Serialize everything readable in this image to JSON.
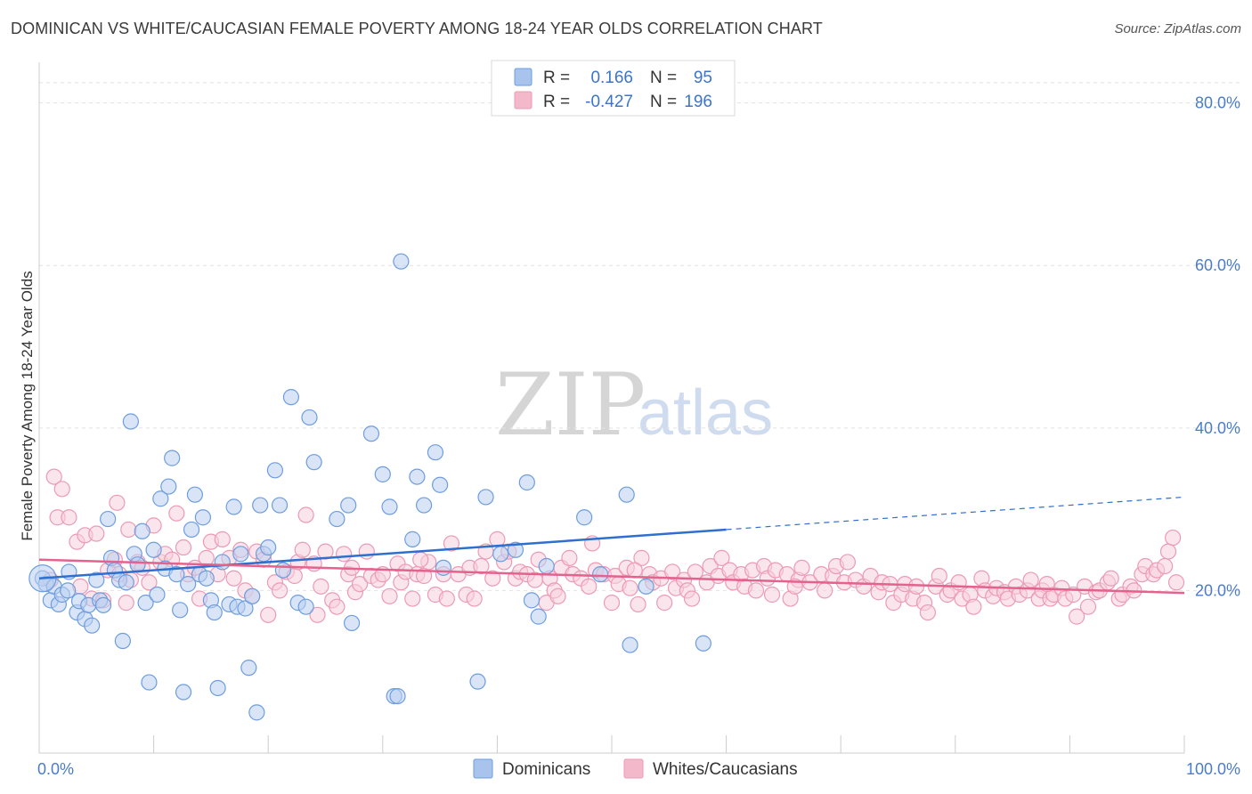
{
  "title": "DOMINICAN VS WHITE/CAUCASIAN FEMALE POVERTY AMONG 18-24 YEAR OLDS CORRELATION CHART",
  "source": "Source: ZipAtlas.com",
  "watermark": {
    "zip": "ZIP",
    "atlas": "atlas"
  },
  "legend": {
    "rows": [
      {
        "r_label": "R =",
        "r_value": "0.166",
        "n_label": "N =",
        "n_value": "95",
        "color": "#a8c4ec"
      },
      {
        "r_label": "R =",
        "r_value": "-0.427",
        "n_label": "N =",
        "n_value": "196",
        "color": "#f4b8cb"
      }
    ]
  },
  "bottom_legend": [
    {
      "label": "Dominicans",
      "color": "#a8c4ec"
    },
    {
      "label": "Whites/Caucasians",
      "color": "#f4b8cb"
    }
  ],
  "chart_data": {
    "type": "scatter",
    "ylabel": "Female Poverty Among 18-24 Year Olds",
    "xlim": [
      0,
      100
    ],
    "ylim": [
      0,
      85
    ],
    "y_ticks": [
      {
        "v": 20,
        "label": "20.0%"
      },
      {
        "v": 40,
        "label": "40.0%"
      },
      {
        "v": 60,
        "label": "60.0%"
      },
      {
        "v": 80,
        "label": "80.0%"
      }
    ],
    "x_tick_labels": [
      {
        "v": 0,
        "label": "0.0%"
      },
      {
        "v": 100,
        "label": "100.0%"
      }
    ],
    "grid": true,
    "legend_position": "top-center",
    "series": [
      {
        "name": "Dominicans",
        "color": "#6d9de0",
        "fill": "#b9d0f1",
        "trend": {
          "x0": 0,
          "y0": 21.5,
          "x1": 60,
          "y1": 27.5,
          "dash_to_x": 100,
          "dash_to_y": 31.5,
          "color": "#2f6fcf"
        },
        "points": [
          [
            0.3,
            21.5
          ],
          [
            0.6,
            20.8
          ],
          [
            1.0,
            18.8
          ],
          [
            1.3,
            20.5
          ],
          [
            1.7,
            18.3
          ],
          [
            2.0,
            19.5
          ],
          [
            2.5,
            20.0
          ],
          [
            2.6,
            22.3
          ],
          [
            3.3,
            17.3
          ],
          [
            3.5,
            18.7
          ],
          [
            4.0,
            16.5
          ],
          [
            4.3,
            18.2
          ],
          [
            4.6,
            15.7
          ],
          [
            5.0,
            21.3
          ],
          [
            5.3,
            18.8
          ],
          [
            5.6,
            18.2
          ],
          [
            6.0,
            28.8
          ],
          [
            6.3,
            24.0
          ],
          [
            6.6,
            22.5
          ],
          [
            7.0,
            21.3
          ],
          [
            7.3,
            13.8
          ],
          [
            7.6,
            21.0
          ],
          [
            8.0,
            40.8
          ],
          [
            8.3,
            24.5
          ],
          [
            8.6,
            23.2
          ],
          [
            9.0,
            27.3
          ],
          [
            9.3,
            18.5
          ],
          [
            9.6,
            8.7
          ],
          [
            10.0,
            25.0
          ],
          [
            10.3,
            19.5
          ],
          [
            10.6,
            31.3
          ],
          [
            11.0,
            22.7
          ],
          [
            11.3,
            32.8
          ],
          [
            11.6,
            36.3
          ],
          [
            12.0,
            22.0
          ],
          [
            12.3,
            17.6
          ],
          [
            12.6,
            7.5
          ],
          [
            13.0,
            20.8
          ],
          [
            13.3,
            27.5
          ],
          [
            13.6,
            31.8
          ],
          [
            14.0,
            22.0
          ],
          [
            14.3,
            29.0
          ],
          [
            14.6,
            21.5
          ],
          [
            15.0,
            18.8
          ],
          [
            15.3,
            17.3
          ],
          [
            15.6,
            8.0
          ],
          [
            16.0,
            23.5
          ],
          [
            16.6,
            18.3
          ],
          [
            17.0,
            30.3
          ],
          [
            17.3,
            18.0
          ],
          [
            17.6,
            24.5
          ],
          [
            18.0,
            17.8
          ],
          [
            18.3,
            10.5
          ],
          [
            18.6,
            19.3
          ],
          [
            19.0,
            5.0
          ],
          [
            19.3,
            30.5
          ],
          [
            19.6,
            24.5
          ],
          [
            20.0,
            25.3
          ],
          [
            20.6,
            34.8
          ],
          [
            21.0,
            30.5
          ],
          [
            21.3,
            22.5
          ],
          [
            22.0,
            43.8
          ],
          [
            22.6,
            18.5
          ],
          [
            23.3,
            18.0
          ],
          [
            23.6,
            41.3
          ],
          [
            24.0,
            35.8
          ],
          [
            26.0,
            28.8
          ],
          [
            27.0,
            30.5
          ],
          [
            27.3,
            16.0
          ],
          [
            29.0,
            39.3
          ],
          [
            30.0,
            34.3
          ],
          [
            30.6,
            30.3
          ],
          [
            31.0,
            7.0
          ],
          [
            31.3,
            7.0
          ],
          [
            31.6,
            60.5
          ],
          [
            32.6,
            26.3
          ],
          [
            33.0,
            34.0
          ],
          [
            33.6,
            30.5
          ],
          [
            34.6,
            37.0
          ],
          [
            35.0,
            33.0
          ],
          [
            35.3,
            22.8
          ],
          [
            38.3,
            8.8
          ],
          [
            39.0,
            31.5
          ],
          [
            40.3,
            24.5
          ],
          [
            41.6,
            25.0
          ],
          [
            42.6,
            33.3
          ],
          [
            43.0,
            18.8
          ],
          [
            43.6,
            16.8
          ],
          [
            44.3,
            23.0
          ],
          [
            47.6,
            29.0
          ],
          [
            49.0,
            22.0
          ],
          [
            51.3,
            31.8
          ],
          [
            51.6,
            13.3
          ],
          [
            58.0,
            13.5
          ],
          [
            53.0,
            20.5
          ]
        ]
      },
      {
        "name": "Whites/Caucasians",
        "color": "#ec9ab5",
        "fill": "#f8cfdd",
        "trend": {
          "x0": 0,
          "y0": 23.8,
          "x1": 100,
          "y1": 19.7,
          "color": "#e4628e"
        },
        "points": [
          [
            1.0,
            21.3
          ],
          [
            1.3,
            34.0
          ],
          [
            1.6,
            29.0
          ],
          [
            2.0,
            32.5
          ],
          [
            2.6,
            29.0
          ],
          [
            3.3,
            26.0
          ],
          [
            3.6,
            20.5
          ],
          [
            4.0,
            26.8
          ],
          [
            4.6,
            19.0
          ],
          [
            5.0,
            27.0
          ],
          [
            5.6,
            18.8
          ],
          [
            6.0,
            22.5
          ],
          [
            6.6,
            23.8
          ],
          [
            6.8,
            30.8
          ],
          [
            7.0,
            22.0
          ],
          [
            7.6,
            18.5
          ],
          [
            7.8,
            27.5
          ],
          [
            8.0,
            21.3
          ],
          [
            8.6,
            23.5
          ],
          [
            9.0,
            22.8
          ],
          [
            9.6,
            21.0
          ],
          [
            10.0,
            28.0
          ],
          [
            10.6,
            23.5
          ],
          [
            11.0,
            24.5
          ],
          [
            11.6,
            23.8
          ],
          [
            12.0,
            29.5
          ],
          [
            12.6,
            25.3
          ],
          [
            13.0,
            22.0
          ],
          [
            13.6,
            22.8
          ],
          [
            14.0,
            19.0
          ],
          [
            14.6,
            24.0
          ],
          [
            15.0,
            26.0
          ],
          [
            15.6,
            22.0
          ],
          [
            16.0,
            26.3
          ],
          [
            16.6,
            24.0
          ],
          [
            17.0,
            21.5
          ],
          [
            17.6,
            25.0
          ],
          [
            18.0,
            20.0
          ],
          [
            18.6,
            19.3
          ],
          [
            19.0,
            24.8
          ],
          [
            19.6,
            23.8
          ],
          [
            20.0,
            17.0
          ],
          [
            20.6,
            21.0
          ],
          [
            21.0,
            20.0
          ],
          [
            21.6,
            22.3
          ],
          [
            22.3,
            21.8
          ],
          [
            22.6,
            23.5
          ],
          [
            23.0,
            25.0
          ],
          [
            23.3,
            29.3
          ],
          [
            24.0,
            23.3
          ],
          [
            24.3,
            17.0
          ],
          [
            24.6,
            20.5
          ],
          [
            25.0,
            24.8
          ],
          [
            25.6,
            18.8
          ],
          [
            26.0,
            18.0
          ],
          [
            26.6,
            24.5
          ],
          [
            27.0,
            22.0
          ],
          [
            27.6,
            19.8
          ],
          [
            28.0,
            20.8
          ],
          [
            28.6,
            24.8
          ],
          [
            29.0,
            21.8
          ],
          [
            29.6,
            21.3
          ],
          [
            30.0,
            22.0
          ],
          [
            30.6,
            19.3
          ],
          [
            31.3,
            23.3
          ],
          [
            31.6,
            21.0
          ],
          [
            32.0,
            22.3
          ],
          [
            32.6,
            19.0
          ],
          [
            33.0,
            22.0
          ],
          [
            33.6,
            21.8
          ],
          [
            34.0,
            23.5
          ],
          [
            34.6,
            19.5
          ],
          [
            35.3,
            22.0
          ],
          [
            35.6,
            19.0
          ],
          [
            36.0,
            25.8
          ],
          [
            36.6,
            22.0
          ],
          [
            37.3,
            19.5
          ],
          [
            37.6,
            22.8
          ],
          [
            38.0,
            19.0
          ],
          [
            38.6,
            23.0
          ],
          [
            39.0,
            24.8
          ],
          [
            39.6,
            21.5
          ],
          [
            40.0,
            26.3
          ],
          [
            40.6,
            23.5
          ],
          [
            41.0,
            24.8
          ],
          [
            41.6,
            21.5
          ],
          [
            42.0,
            22.3
          ],
          [
            42.6,
            22.0
          ],
          [
            43.3,
            21.3
          ],
          [
            43.6,
            23.8
          ],
          [
            44.3,
            18.5
          ],
          [
            44.6,
            21.5
          ],
          [
            45.0,
            20.0
          ],
          [
            45.6,
            22.8
          ],
          [
            46.3,
            24.0
          ],
          [
            46.6,
            22.0
          ],
          [
            47.3,
            21.5
          ],
          [
            48.0,
            20.5
          ],
          [
            48.3,
            25.8
          ],
          [
            48.6,
            22.5
          ],
          [
            49.3,
            22.0
          ],
          [
            50.0,
            18.5
          ],
          [
            50.3,
            21.8
          ],
          [
            50.6,
            20.8
          ],
          [
            51.3,
            22.8
          ],
          [
            51.6,
            20.3
          ],
          [
            52.3,
            18.3
          ],
          [
            52.6,
            24.0
          ],
          [
            53.3,
            22.0
          ],
          [
            53.6,
            21.0
          ],
          [
            54.3,
            21.5
          ],
          [
            54.6,
            18.5
          ],
          [
            55.3,
            22.3
          ],
          [
            55.6,
            20.3
          ],
          [
            56.3,
            21.3
          ],
          [
            56.6,
            20.0
          ],
          [
            57.3,
            22.3
          ],
          [
            58.3,
            21.0
          ],
          [
            58.6,
            23.0
          ],
          [
            59.3,
            21.8
          ],
          [
            59.6,
            24.0
          ],
          [
            60.3,
            22.5
          ],
          [
            60.6,
            21.0
          ],
          [
            61.3,
            22.0
          ],
          [
            61.6,
            20.5
          ],
          [
            62.3,
            22.5
          ],
          [
            62.6,
            20.0
          ],
          [
            63.3,
            23.0
          ],
          [
            63.6,
            21.5
          ],
          [
            64.3,
            22.5
          ],
          [
            65.3,
            22.0
          ],
          [
            65.6,
            19.0
          ],
          [
            66.3,
            21.3
          ],
          [
            66.6,
            22.8
          ],
          [
            67.3,
            21.0
          ],
          [
            68.3,
            22.0
          ],
          [
            68.6,
            20.0
          ],
          [
            69.3,
            21.8
          ],
          [
            69.6,
            23.0
          ],
          [
            70.3,
            21.0
          ],
          [
            70.6,
            23.5
          ],
          [
            71.3,
            21.3
          ],
          [
            72.0,
            20.5
          ],
          [
            72.6,
            21.8
          ],
          [
            73.3,
            19.8
          ],
          [
            73.6,
            21.0
          ],
          [
            74.3,
            20.8
          ],
          [
            74.6,
            18.5
          ],
          [
            75.3,
            19.5
          ],
          [
            75.6,
            20.8
          ],
          [
            76.3,
            19.0
          ],
          [
            76.6,
            20.5
          ],
          [
            77.3,
            18.5
          ],
          [
            77.6,
            17.3
          ],
          [
            78.3,
            20.5
          ],
          [
            78.6,
            21.8
          ],
          [
            79.3,
            19.5
          ],
          [
            79.6,
            20.0
          ],
          [
            80.3,
            21.0
          ],
          [
            80.6,
            19.0
          ],
          [
            81.3,
            19.5
          ],
          [
            81.6,
            18.0
          ],
          [
            82.3,
            21.5
          ],
          [
            82.6,
            20.0
          ],
          [
            83.3,
            19.3
          ],
          [
            83.6,
            20.3
          ],
          [
            84.3,
            19.8
          ],
          [
            84.6,
            19.0
          ],
          [
            85.3,
            20.5
          ],
          [
            85.6,
            19.5
          ],
          [
            86.3,
            20.0
          ],
          [
            86.6,
            21.3
          ],
          [
            87.3,
            19.0
          ],
          [
            87.6,
            20.0
          ],
          [
            88.3,
            19.0
          ],
          [
            88.6,
            19.5
          ],
          [
            89.3,
            20.3
          ],
          [
            89.6,
            19.0
          ],
          [
            90.3,
            19.5
          ],
          [
            90.6,
            16.8
          ],
          [
            91.3,
            20.5
          ],
          [
            91.6,
            18.0
          ],
          [
            92.3,
            19.8
          ],
          [
            92.6,
            20.0
          ],
          [
            93.3,
            21.0
          ],
          [
            93.6,
            21.5
          ],
          [
            94.3,
            19.0
          ],
          [
            94.6,
            19.5
          ],
          [
            95.3,
            20.5
          ],
          [
            95.6,
            20.0
          ],
          [
            96.3,
            22.0
          ],
          [
            96.6,
            23.0
          ],
          [
            97.3,
            22.0
          ],
          [
            97.6,
            22.5
          ],
          [
            98.3,
            23.0
          ],
          [
            98.6,
            24.8
          ],
          [
            99.0,
            26.5
          ],
          [
            99.3,
            21.0
          ],
          [
            66.0,
            20.5
          ],
          [
            57.0,
            19.0
          ],
          [
            27.3,
            22.8
          ],
          [
            33.3,
            23.8
          ],
          [
            45.3,
            19.3
          ],
          [
            52.0,
            22.5
          ],
          [
            64.0,
            19.5
          ],
          [
            88.0,
            20.8
          ]
        ]
      }
    ]
  }
}
